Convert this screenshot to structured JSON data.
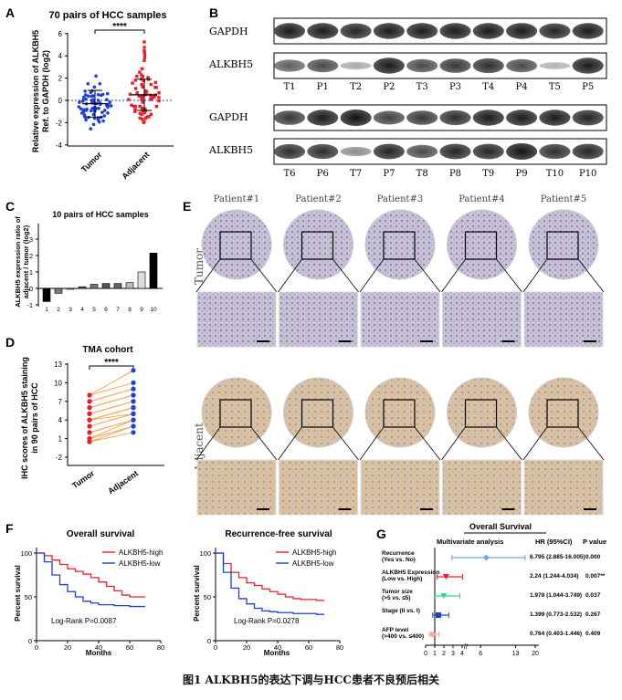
{
  "panels": {
    "A": {
      "letter": "A",
      "title": "70 pairs of HCC samples",
      "ylabel1": "Relative expression of ALKBH5",
      "ylabel2": "Ref. to GAPDH (log2)",
      "yticks": [
        "6",
        "4",
        "2",
        "0",
        "-2",
        "-4"
      ],
      "xcats": [
        "Tumor",
        "Adjacent"
      ],
      "sig": "****"
    },
    "B": {
      "letter": "B",
      "row1_labels": [
        "GAPDH",
        "ALKBH5"
      ],
      "row1_lanes": [
        "T1",
        "P1",
        "T2",
        "P2",
        "T3",
        "P3",
        "T4",
        "P4",
        "T5",
        "P5"
      ],
      "row2_labels": [
        "GAPDH",
        "ALKBH5"
      ],
      "row2_lanes": [
        "T6",
        "P6",
        "T7",
        "P7",
        "T8",
        "P8",
        "T9",
        "P9",
        "T10",
        "P10"
      ]
    },
    "C": {
      "letter": "C",
      "title": "10 pairs of HCC samples",
      "ylabel1": "ALKBH5 expression ratio of",
      "ylabel2": "adjacent / tumor (log2)",
      "yticks": [
        "3",
        "2",
        "1",
        "0",
        "-1"
      ]
    },
    "D": {
      "letter": "D",
      "title": "TMA cohort",
      "ylabel1": "IHC scores of ALKBH5 staining",
      "ylabel2": "in 90 pairs of HCC",
      "yticks": [
        "13",
        "10",
        "7",
        "4",
        "1",
        "-2"
      ],
      "xcats": [
        "Tumor",
        "Adjacent"
      ],
      "sig": "****"
    },
    "E": {
      "letter": "E",
      "patients": [
        "Patient#1",
        "Patient#2",
        "Patient#3",
        "Patient#4",
        "Patient#5"
      ],
      "row_tumor": "Tumor",
      "row_adjacent": "Adjacent"
    },
    "F": {
      "letter": "F",
      "os": {
        "title": "Overall survival",
        "legend": [
          "ALKBH5-high",
          "ALKBH5-low"
        ],
        "stat": "Log-Rank P=0.0087",
        "ylabel": "Percent survival",
        "xlabel": "Months",
        "yticks": [
          "100",
          "50",
          "0"
        ],
        "xticks": [
          "0",
          "20",
          "40",
          "60",
          "80"
        ]
      },
      "rfs": {
        "title": "Recurrence-free survival",
        "legend": [
          "ALKBH5-high",
          "ALKBH5-low"
        ],
        "stat": "Log-Rank P=0.0278",
        "ylabel": "Percent survival",
        "xlabel": "Months",
        "yticks": [
          "100",
          "50",
          "0"
        ],
        "xticks": [
          "0",
          "20",
          "40",
          "60",
          "80"
        ]
      }
    },
    "G": {
      "letter": "G",
      "title": "Overall Survival",
      "subtitle": "Multivariate analysis",
      "hr_header": "HR (95%CI)",
      "p_header": "P value",
      "rows": [
        {
          "name": "Recurrence",
          "sub": "(Yes vs. No)",
          "hr": "6.795 (2.885-16.005)",
          "p": "0.000"
        },
        {
          "name": "ALKBH5 Expression",
          "sub": "(Low vs. High)",
          "hr": "2.24 (1.244-4.034)",
          "p": "0.007**"
        },
        {
          "name": "Tumor size",
          "sub": "(>5 vs. ≤5)",
          "hr": "1.978 (1.044-3.749)",
          "p": "0.037"
        },
        {
          "name": "Stage (II vs. I)",
          "sub": "",
          "hr": "1.399 (0.773-2.532)",
          "p": "0.267"
        },
        {
          "name": "AFP level",
          "sub": "(>400 vs. ≤400)",
          "hr": "0.764 (0.403-1.446)",
          "p": "0.409"
        }
      ],
      "xticks": [
        "0",
        "1",
        "2",
        "3",
        "4",
        "6",
        "13",
        "20"
      ]
    }
  },
  "caption": "图1  ALKBH5的表达下调与HCC患者不良预后相关",
  "colors": {
    "red": "#e8202a",
    "blue": "#1f3fdc",
    "orange": "#f5a04a",
    "teal": "#3ec9a7",
    "lightblue": "#6fa8dc",
    "pink": "#f4a9a0"
  },
  "chart_data": [
    {
      "type": "bar",
      "panel": "C",
      "categories": [
        "1",
        "2",
        "3",
        "4",
        "5",
        "6",
        "7",
        "8",
        "9",
        "10"
      ],
      "values": [
        -0.8,
        -0.3,
        -0.05,
        0.1,
        0.25,
        0.3,
        0.3,
        0.35,
        1.0,
        2.15
      ],
      "ylim": [
        -1,
        3
      ],
      "title": "10 pairs of HCC samples",
      "ylabel": "ALKBH5 expression ratio of adjacent / tumor (log2)"
    },
    {
      "type": "scatter",
      "panel": "A",
      "title": "70 pairs of HCC samples",
      "categories": [
        "Tumor",
        "Adjacent"
      ],
      "ylim": [
        -4,
        6
      ],
      "series": [
        {
          "name": "Tumor",
          "mean": -0.3,
          "sd": 1.2
        },
        {
          "name": "Adjacent",
          "mean": 0.5,
          "sd": 1.4
        }
      ]
    },
    {
      "type": "line",
      "panel": "D",
      "title": "TMA cohort",
      "categories": [
        "Tumor",
        "Adjacent"
      ],
      "ylim": [
        -2,
        13
      ],
      "tumor": [
        8,
        8,
        7,
        7,
        6,
        6,
        5,
        5,
        4,
        4,
        4,
        4,
        3,
        3,
        2,
        2,
        1,
        1,
        0.5,
        0.5
      ],
      "adjacent": [
        12,
        10,
        9,
        9,
        8,
        8,
        7,
        7,
        6,
        6,
        6,
        5,
        5,
        5,
        4,
        4,
        4,
        3,
        3,
        2
      ]
    },
    {
      "type": "line",
      "panel": "F-OS",
      "title": "Overall survival",
      "xlim": [
        0,
        80
      ],
      "ylim": [
        0,
        100
      ],
      "series": [
        {
          "name": "ALKBH5-high",
          "x": [
            0,
            5,
            10,
            15,
            20,
            25,
            30,
            35,
            40,
            45,
            50,
            55,
            60,
            65,
            70
          ],
          "y": [
            100,
            97,
            92,
            87,
            82,
            79,
            76,
            72,
            67,
            62,
            57,
            52,
            50,
            50,
            50
          ]
        },
        {
          "name": "ALKBH5-low",
          "x": [
            0,
            5,
            10,
            15,
            20,
            25,
            30,
            35,
            40,
            45,
            50,
            55,
            60,
            65,
            70
          ],
          "y": [
            100,
            90,
            75,
            64,
            56,
            50,
            45,
            43,
            41,
            41,
            40,
            40,
            39,
            39,
            39
          ]
        }
      ]
    },
    {
      "type": "line",
      "panel": "F-RFS",
      "title": "Recurrence-free survival",
      "xlim": [
        0,
        80
      ],
      "ylim": [
        0,
        100
      ],
      "series": [
        {
          "name": "ALKBH5-high",
          "x": [
            0,
            5,
            10,
            15,
            20,
            25,
            30,
            35,
            40,
            45,
            50,
            55,
            60,
            65,
            70
          ],
          "y": [
            100,
            88,
            78,
            72,
            66,
            63,
            59,
            56,
            53,
            50,
            48,
            47,
            47,
            46,
            46
          ]
        },
        {
          "name": "ALKBH5-low",
          "x": [
            0,
            5,
            10,
            15,
            20,
            25,
            30,
            35,
            40,
            45,
            50,
            55,
            60,
            65,
            70
          ],
          "y": [
            100,
            78,
            60,
            48,
            42,
            37,
            34,
            33,
            32,
            32,
            31,
            31,
            31,
            30,
            30
          ]
        }
      ]
    },
    {
      "type": "scatter",
      "panel": "G",
      "title": "Overall Survival",
      "series": [
        {
          "name": "Recurrence",
          "hr": 6.795,
          "lo": 2.885,
          "hi": 16.005
        },
        {
          "name": "ALKBH5 Expression",
          "hr": 2.24,
          "lo": 1.244,
          "hi": 4.034
        },
        {
          "name": "Tumor size",
          "hr": 1.978,
          "lo": 1.044,
          "hi": 3.749
        },
        {
          "name": "Stage (II vs. I)",
          "hr": 1.399,
          "lo": 0.773,
          "hi": 2.532
        },
        {
          "name": "AFP level",
          "hr": 0.764,
          "lo": 0.403,
          "hi": 1.446
        }
      ]
    }
  ]
}
